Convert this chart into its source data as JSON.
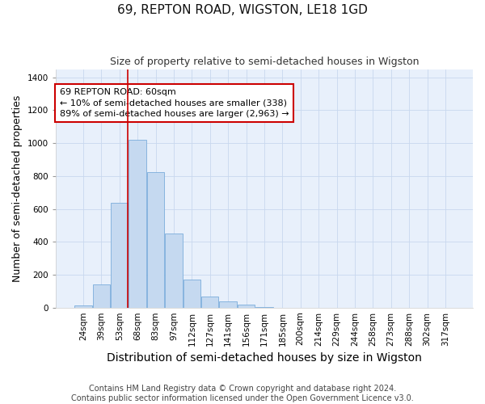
{
  "title": "69, REPTON ROAD, WIGSTON, LE18 1GD",
  "subtitle": "Size of property relative to semi-detached houses in Wigston",
  "xlabel": "Distribution of semi-detached houses by size in Wigston",
  "ylabel": "Number of semi-detached properties",
  "categories": [
    "24sqm",
    "39sqm",
    "53sqm",
    "68sqm",
    "83sqm",
    "97sqm",
    "112sqm",
    "127sqm",
    "141sqm",
    "156sqm",
    "171sqm",
    "185sqm",
    "200sqm",
    "214sqm",
    "229sqm",
    "244sqm",
    "258sqm",
    "273sqm",
    "288sqm",
    "302sqm",
    "317sqm"
  ],
  "values": [
    12,
    140,
    635,
    1020,
    825,
    450,
    170,
    65,
    40,
    18,
    5,
    0,
    0,
    0,
    0,
    0,
    0,
    0,
    0,
    0,
    0
  ],
  "bar_color": "#c5d9f0",
  "bar_edge_color": "#7aaddb",
  "redline_index": 2,
  "annotation_line1": "69 REPTON ROAD: 60sqm",
  "annotation_line2": "← 10% of semi-detached houses are smaller (338)",
  "annotation_line3": "89% of semi-detached houses are larger (2,963) →",
  "annotation_box_color": "#ffffff",
  "annotation_edge_color": "#cc0000",
  "redline_color": "#cc0000",
  "ylim": [
    0,
    1450
  ],
  "yticks": [
    0,
    200,
    400,
    600,
    800,
    1000,
    1200,
    1400
  ],
  "grid_color": "#c8d8ee",
  "bg_color": "#e8f0fb",
  "footer1": "Contains HM Land Registry data © Crown copyright and database right 2024.",
  "footer2": "Contains public sector information licensed under the Open Government Licence v3.0.",
  "title_fontsize": 11,
  "subtitle_fontsize": 9,
  "axis_label_fontsize": 9,
  "tick_fontsize": 7.5,
  "footer_fontsize": 7,
  "annotation_fontsize": 8
}
